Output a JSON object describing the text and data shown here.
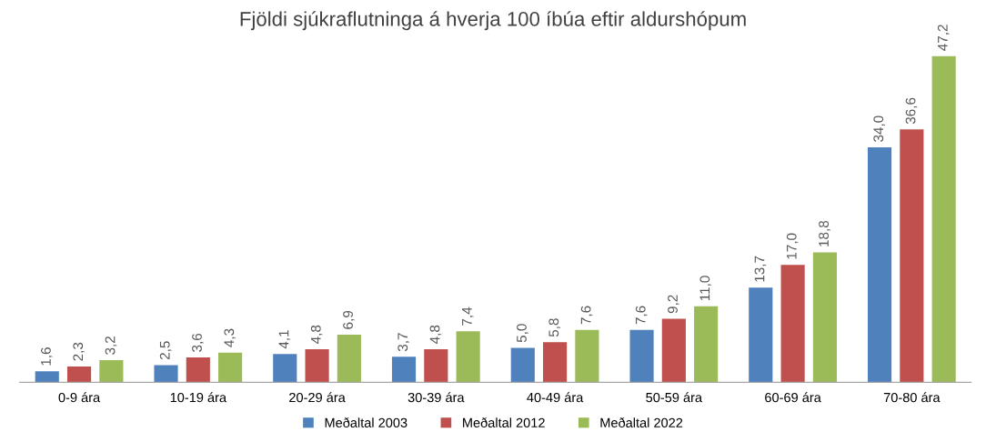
{
  "chart_data": {
    "type": "bar",
    "title": "Fjöldi sjúkraflutninga á hverja 100 íbúa eftir aldurshópum",
    "categories": [
      "0-9 ára",
      "10-19 ára",
      "20-29 ára",
      "30-39 ára",
      "40-49 ára",
      "50-59 ára",
      "60-69 ára",
      "70-80 ára"
    ],
    "series": [
      {
        "name": "Meðaltal 2003",
        "color": "#4f81bd",
        "values": [
          1.6,
          2.5,
          4.1,
          3.7,
          5.0,
          7.6,
          13.7,
          34.0
        ],
        "value_labels": [
          "1,6",
          "2,5",
          "4,1",
          "3,7",
          "5,0",
          "7,6",
          "13,7",
          "34,0"
        ]
      },
      {
        "name": "Meðaltal 2012",
        "color": "#c0504d",
        "values": [
          2.3,
          3.6,
          4.8,
          4.8,
          5.8,
          9.2,
          17.0,
          36.6
        ],
        "value_labels": [
          "2,3",
          "3,6",
          "4,8",
          "4,8",
          "5,8",
          "9,2",
          "17,0",
          "36,6"
        ]
      },
      {
        "name": "Meðaltal 2022",
        "color": "#9bbb59",
        "values": [
          3.2,
          4.3,
          6.9,
          7.4,
          7.6,
          11.0,
          18.8,
          47.2
        ],
        "value_labels": [
          "3,2",
          "4,3",
          "6,9",
          "7,4",
          "7,6",
          "11,0",
          "18,8",
          "47,2"
        ]
      }
    ],
    "legend": "bottom"
  }
}
